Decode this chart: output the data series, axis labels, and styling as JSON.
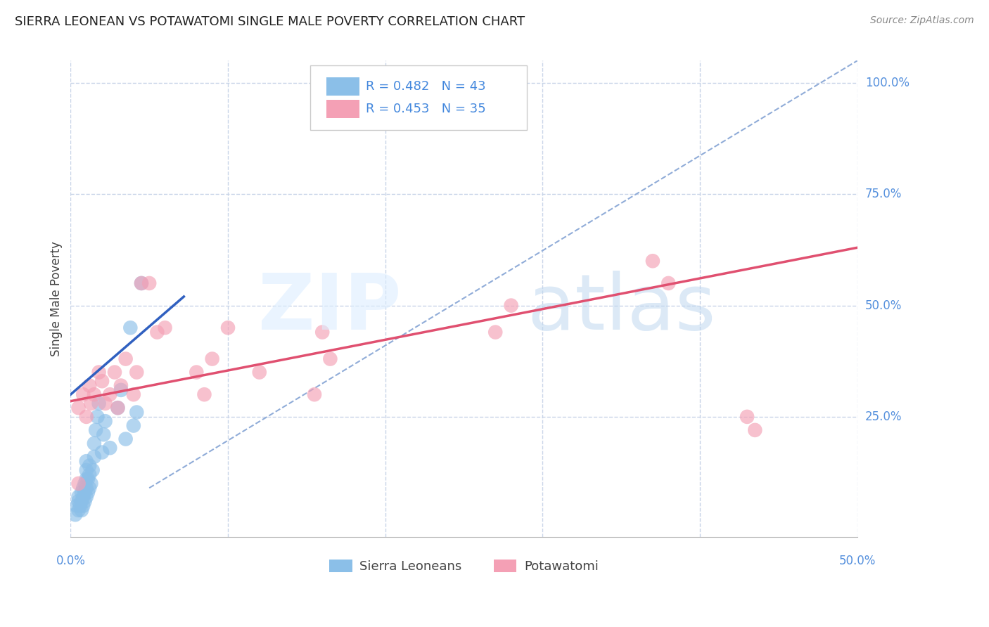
{
  "title": "SIERRA LEONEAN VS POTAWATOMI SINGLE MALE POVERTY CORRELATION CHART",
  "source": "Source: ZipAtlas.com",
  "ylabel": "Single Male Poverty",
  "xlim": [
    0.0,
    0.5
  ],
  "ylim": [
    -0.02,
    1.05
  ],
  "xticks": [
    0.0,
    0.1,
    0.2,
    0.3,
    0.4,
    0.5
  ],
  "ytick_positions": [
    0.25,
    0.5,
    0.75,
    1.0
  ],
  "ytick_labels": [
    "25.0%",
    "50.0%",
    "75.0%",
    "100.0%"
  ],
  "blue_color": "#8bbfe8",
  "pink_color": "#f4a0b5",
  "blue_line_color": "#3060c0",
  "pink_line_color": "#e05070",
  "dashed_line_color": "#90acd8",
  "background_color": "#ffffff",
  "grid_color": "#c8d4e8",
  "sl_points_x": [
    0.003,
    0.004,
    0.005,
    0.005,
    0.005,
    0.006,
    0.007,
    0.007,
    0.007,
    0.008,
    0.008,
    0.008,
    0.009,
    0.009,
    0.009,
    0.01,
    0.01,
    0.01,
    0.01,
    0.01,
    0.011,
    0.011,
    0.012,
    0.012,
    0.012,
    0.013,
    0.014,
    0.015,
    0.015,
    0.016,
    0.017,
    0.018,
    0.02,
    0.021,
    0.022,
    0.025,
    0.03,
    0.032,
    0.035,
    0.038,
    0.04,
    0.042,
    0.045
  ],
  "sl_points_y": [
    0.03,
    0.05,
    0.04,
    0.06,
    0.07,
    0.05,
    0.04,
    0.06,
    0.08,
    0.05,
    0.07,
    0.09,
    0.06,
    0.08,
    0.1,
    0.07,
    0.09,
    0.11,
    0.13,
    0.15,
    0.08,
    0.11,
    0.09,
    0.12,
    0.14,
    0.1,
    0.13,
    0.16,
    0.19,
    0.22,
    0.25,
    0.28,
    0.17,
    0.21,
    0.24,
    0.18,
    0.27,
    0.31,
    0.2,
    0.45,
    0.23,
    0.26,
    0.55
  ],
  "pot_points_x": [
    0.005,
    0.008,
    0.01,
    0.012,
    0.013,
    0.015,
    0.018,
    0.02,
    0.022,
    0.025,
    0.028,
    0.03,
    0.032,
    0.035,
    0.04,
    0.042,
    0.045,
    0.05,
    0.055,
    0.06,
    0.08,
    0.085,
    0.09,
    0.1,
    0.12,
    0.155,
    0.16,
    0.165,
    0.27,
    0.28,
    0.37,
    0.38,
    0.43,
    0.435,
    0.005
  ],
  "pot_points_y": [
    0.27,
    0.3,
    0.25,
    0.32,
    0.28,
    0.3,
    0.35,
    0.33,
    0.28,
    0.3,
    0.35,
    0.27,
    0.32,
    0.38,
    0.3,
    0.35,
    0.55,
    0.55,
    0.44,
    0.45,
    0.35,
    0.3,
    0.38,
    0.45,
    0.35,
    0.3,
    0.44,
    0.38,
    0.44,
    0.5,
    0.6,
    0.55,
    0.25,
    0.22,
    0.1
  ],
  "sl_line_x0": 0.0,
  "sl_line_x1": 0.072,
  "sl_line_y0": 0.3,
  "sl_line_y1": 0.52,
  "pot_line_x0": 0.0,
  "pot_line_x1": 0.5,
  "pot_line_y0": 0.285,
  "pot_line_y1": 0.63,
  "dash_line_x0": 0.05,
  "dash_line_x1": 0.5,
  "dash_line_y0": 0.09,
  "dash_line_y1": 1.05
}
